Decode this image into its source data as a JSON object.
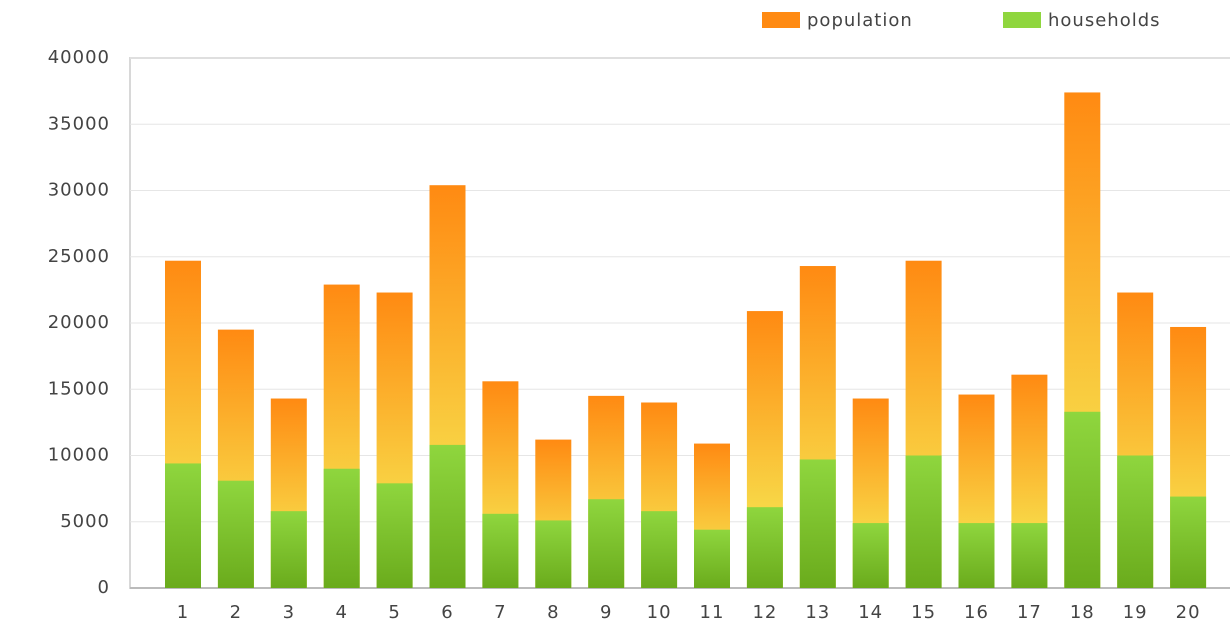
{
  "chart_data": {
    "type": "bar",
    "categories": [
      "1",
      "2",
      "3",
      "4",
      "5",
      "6",
      "7",
      "8",
      "9",
      "10",
      "11",
      "12",
      "13",
      "14",
      "15",
      "16",
      "17",
      "18",
      "19",
      "20"
    ],
    "series": [
      {
        "name": "population",
        "color": "#ff8a12",
        "values": [
          24700,
          19500,
          14300,
          22900,
          22300,
          30400,
          15600,
          11200,
          14500,
          14000,
          10900,
          20900,
          24300,
          14300,
          24700,
          14600,
          16100,
          37400,
          22300,
          19700
        ]
      },
      {
        "name": "households",
        "color": "#8fd63e",
        "values": [
          9400,
          8100,
          5800,
          9000,
          7900,
          10800,
          5600,
          5100,
          6700,
          5800,
          4400,
          6100,
          9700,
          4900,
          10000,
          4900,
          4900,
          13300,
          10000,
          6900
        ]
      }
    ],
    "ylim": [
      0,
      40000
    ],
    "yticks": [
      0,
      5000,
      10000,
      15000,
      20000,
      25000,
      30000,
      35000,
      40000
    ],
    "grid": true,
    "legend": "top-right"
  }
}
